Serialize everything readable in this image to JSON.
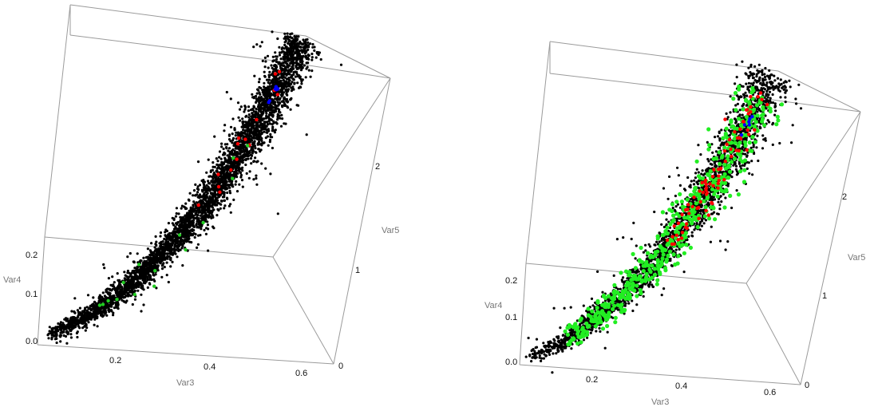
{
  "chart_data": [
    {
      "type": "scatter",
      "projection": "3d",
      "xlabel": "Var3",
      "ylabel": "Var4",
      "zlabel": "Var5",
      "x_ticks": [
        "0.2",
        "0.4",
        "0.6"
      ],
      "y_ticks": [
        "0.0",
        "0.1",
        "0.2"
      ],
      "z_ticks": [
        "0",
        "1",
        "2"
      ],
      "xlim": [
        0.05,
        0.65
      ],
      "ylim": [
        0.0,
        0.25
      ],
      "zlim": [
        0,
        2.8
      ],
      "approx_point_count": 4000,
      "series": [
        {
          "color": "#000000",
          "approx_count": 3960
        },
        {
          "color": "#ff0000",
          "approx_count": 15
        },
        {
          "color": "#22cc22",
          "approx_count": 15
        },
        {
          "color": "#0000ff",
          "approx_count": 6
        }
      ]
    },
    {
      "type": "scatter",
      "projection": "3d",
      "xlabel": "Var3",
      "ylabel": "Var4",
      "zlabel": "Var5",
      "x_ticks": [
        "0.2",
        "0.4",
        "0.6"
      ],
      "y_ticks": [
        "0.0",
        "0.1",
        "0.2"
      ],
      "z_ticks": [
        "0",
        "1",
        "2"
      ],
      "xlim": [
        0.05,
        0.65
      ],
      "ylim": [
        0.0,
        0.25
      ],
      "zlim": [
        0,
        2.8
      ],
      "approx_point_count": 3000,
      "series": [
        {
          "color": "#000000",
          "approx_count": 2400
        },
        {
          "color": "#22ee22",
          "approx_count": 500
        },
        {
          "color": "#ff0000",
          "approx_count": 80
        },
        {
          "color": "#0000ff",
          "approx_count": 6
        }
      ]
    }
  ]
}
